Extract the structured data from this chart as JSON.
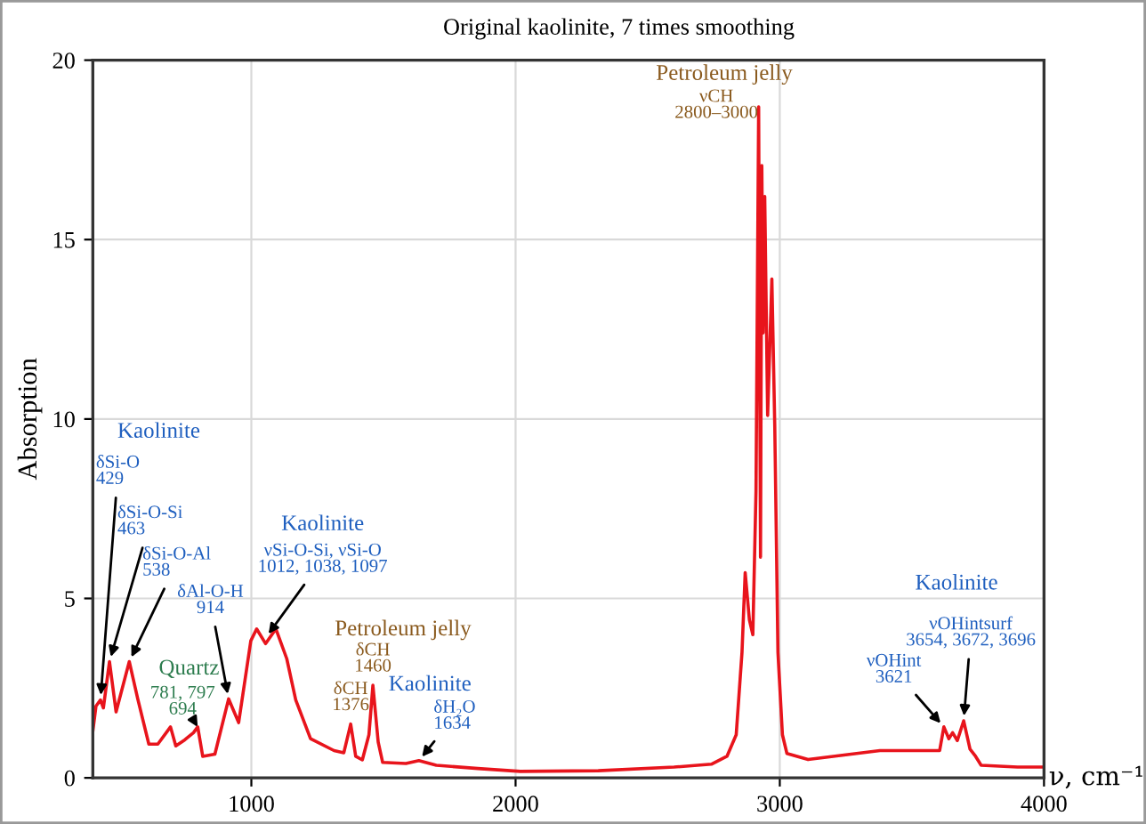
{
  "chart_data": {
    "type": "line",
    "title": "Original kaolinite, 7 times smoothing",
    "xlabel": "ν, cm⁻¹",
    "ylabel": "Absorption",
    "xlim": [
      400,
      4000
    ],
    "ylim": [
      0,
      20
    ],
    "xticks": [
      1000,
      2000,
      3000,
      4000
    ],
    "yticks": [
      0,
      5,
      10,
      15,
      20
    ],
    "grid": true,
    "marker": "none",
    "line_style": "solid",
    "series": [
      {
        "color": "#e8141c",
        "x": [
          400,
          412,
          429,
          440,
          463,
          488,
          538,
          570,
          612,
          646,
          694,
          714,
          748,
          781,
          797,
          816,
          862,
          914,
          952,
          998,
          1020,
          1054,
          1093,
          1134,
          1168,
          1224,
          1313,
          1350,
          1376,
          1395,
          1420,
          1445,
          1460,
          1480,
          1497,
          1585,
          1634,
          1700,
          1857,
          2018,
          2313,
          2600,
          2741,
          2800,
          2835,
          2857,
          2869,
          2885,
          2898,
          2910,
          2920,
          2927,
          2932,
          2937,
          2943,
          2954,
          2970,
          2981,
          2993,
          3010,
          3027,
          3107,
          3379,
          3605,
          3621,
          3640,
          3654,
          3672,
          3696,
          3720,
          3741,
          3762,
          3900,
          4000
        ],
        "values": [
          1.3,
          2.0,
          2.17,
          1.95,
          3.24,
          1.84,
          3.24,
          2.2,
          0.94,
          0.94,
          1.42,
          0.89,
          1.06,
          1.26,
          1.42,
          0.6,
          0.66,
          2.2,
          1.54,
          3.82,
          4.15,
          3.74,
          4.15,
          3.32,
          2.17,
          1.09,
          0.76,
          0.7,
          1.5,
          0.6,
          0.5,
          1.2,
          2.58,
          1.0,
          0.43,
          0.4,
          0.48,
          0.35,
          0.26,
          0.18,
          0.2,
          0.3,
          0.38,
          0.6,
          1.2,
          3.5,
          5.72,
          4.4,
          3.99,
          8,
          18.7,
          6.15,
          17.06,
          12.4,
          16.2,
          10.1,
          13.9,
          9.8,
          3.5,
          1.2,
          0.68,
          0.51,
          0.76,
          0.76,
          1.42,
          1.09,
          1.26,
          1.04,
          1.59,
          0.8,
          0.6,
          0.35,
          0.3,
          0.3
        ]
      }
    ],
    "annotations": [
      "Kaolinite",
      {
        "text": "δSi-O\n429",
        "x": 429,
        "y": 2.17
      },
      {
        "text": "δSi-O-Si\n463",
        "x": 463,
        "y": 3.24
      },
      {
        "text": "δSi-O-Al\n538",
        "x": 538,
        "y": 3.24
      },
      "Quartz",
      {
        "text": "781, 797\n694",
        "x": 797,
        "y": 1.42
      },
      {
        "text": "δAl-O-H\n914",
        "x": 914,
        "y": 2.2
      },
      "Kaolinite",
      {
        "text": "νSi-O-Si, νSi-O\n1012, 1038, 1097",
        "x": 1054,
        "y": 3.9
      },
      "Petroleum jelly",
      {
        "text": "δCH\n1376",
        "x": 1376,
        "y": 1.5
      },
      {
        "text": "δCH\n1460",
        "x": 1460,
        "y": 2.58
      },
      "Kaolinite",
      {
        "text": "δH₂O\n1634",
        "x": 1634,
        "y": 0.48
      },
      "Petroleum jelly",
      "νCH\n2800–3000",
      "Kaolinite",
      {
        "text": "νOHint\n3621",
        "x": 3621,
        "y": 1.42
      },
      {
        "text": "νOHintsurf\n3654, 3672, 3696",
        "x": 3696,
        "y": 1.59
      }
    ]
  }
}
